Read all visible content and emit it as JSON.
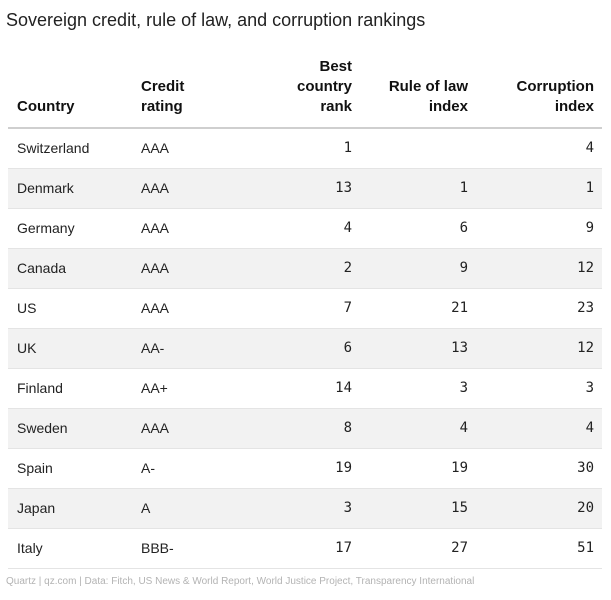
{
  "title": "Sovereign credit, rule of law, and corruption rankings",
  "footer": "Quartz | qz.com | Data: Fitch, US News & World Report, World Justice Project, Transparency International",
  "chart_data": {
    "type": "table",
    "title": "Sovereign credit, rule of law, and corruption rankings",
    "columns": [
      "Country",
      "Credit rating",
      "Best country rank",
      "Rule of law index",
      "Corruption index"
    ],
    "rows": [
      [
        "Switzerland",
        "AAA",
        "1",
        "",
        "4"
      ],
      [
        "Denmark",
        "AAA",
        "13",
        "1",
        "1"
      ],
      [
        "Germany",
        "AAA",
        "4",
        "6",
        "9"
      ],
      [
        "Canada",
        "AAA",
        "2",
        "9",
        "12"
      ],
      [
        "US",
        "AAA",
        "7",
        "21",
        "23"
      ],
      [
        "UK",
        "AA-",
        "6",
        "13",
        "12"
      ],
      [
        "Finland",
        "AA+",
        "14",
        "3",
        "3"
      ],
      [
        "Sweden",
        "AAA",
        "8",
        "4",
        "4"
      ],
      [
        "Spain",
        "A-",
        "19",
        "19",
        "30"
      ],
      [
        "Japan",
        "A",
        "3",
        "15",
        "20"
      ],
      [
        "Italy",
        "BBB-",
        "17",
        "27",
        "51"
      ]
    ]
  }
}
